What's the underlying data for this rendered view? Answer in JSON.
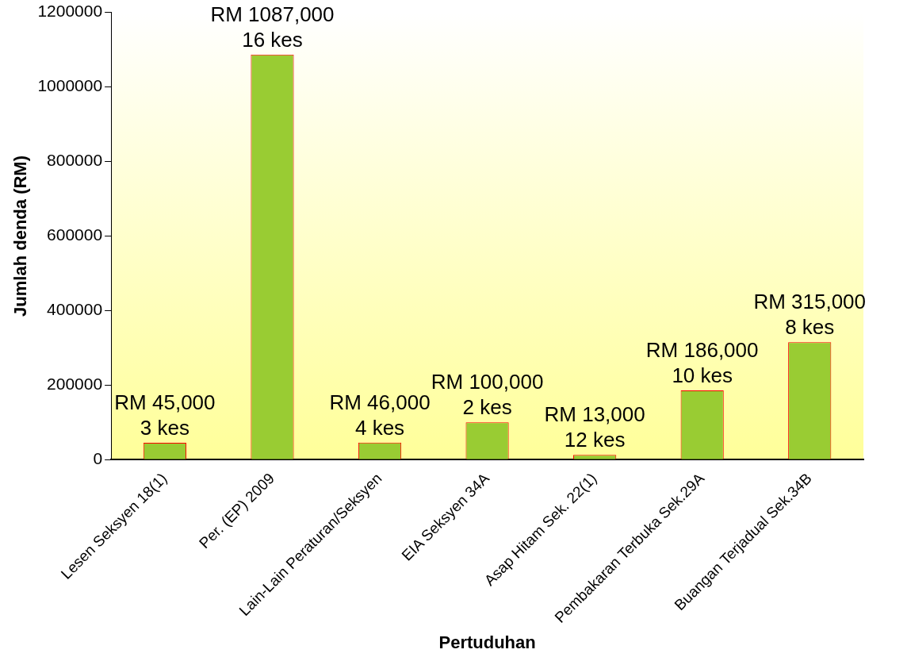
{
  "chart_data": {
    "type": "bar",
    "xlabel": "Pertuduhan",
    "ylabel": "Jumlah denda (RM)",
    "categories": [
      "Lesen Seksyen 18(1)",
      "Per. (EP) 2009",
      "Lain-Lain Peraturan/Seksyen",
      "EIA Seksyen 34A",
      "Asap Hitam Sek. 22(1)",
      "Pembakaran Terbuka Sek.29A",
      "Buangan Terjadual Sek.34B"
    ],
    "values": [
      45000,
      1087000,
      46000,
      100000,
      13000,
      186000,
      315000
    ],
    "color": "#99cc33",
    "value_labels": [
      "RM 45,000\n3 kes",
      "RM 1087,000\n16 kes",
      "RM 46,000\n4 kes",
      "RM 100,000\n2 kes",
      "RM 13,000\n12 kes",
      "RM 186,000\n10 kes",
      "RM 315,000\n8 kes"
    ],
    "ylim": [
      0,
      1200000
    ],
    "yticks": [
      0,
      200000,
      400000,
      600000,
      800000,
      1000000,
      1200000
    ],
    "grid": false,
    "legend": false
  }
}
